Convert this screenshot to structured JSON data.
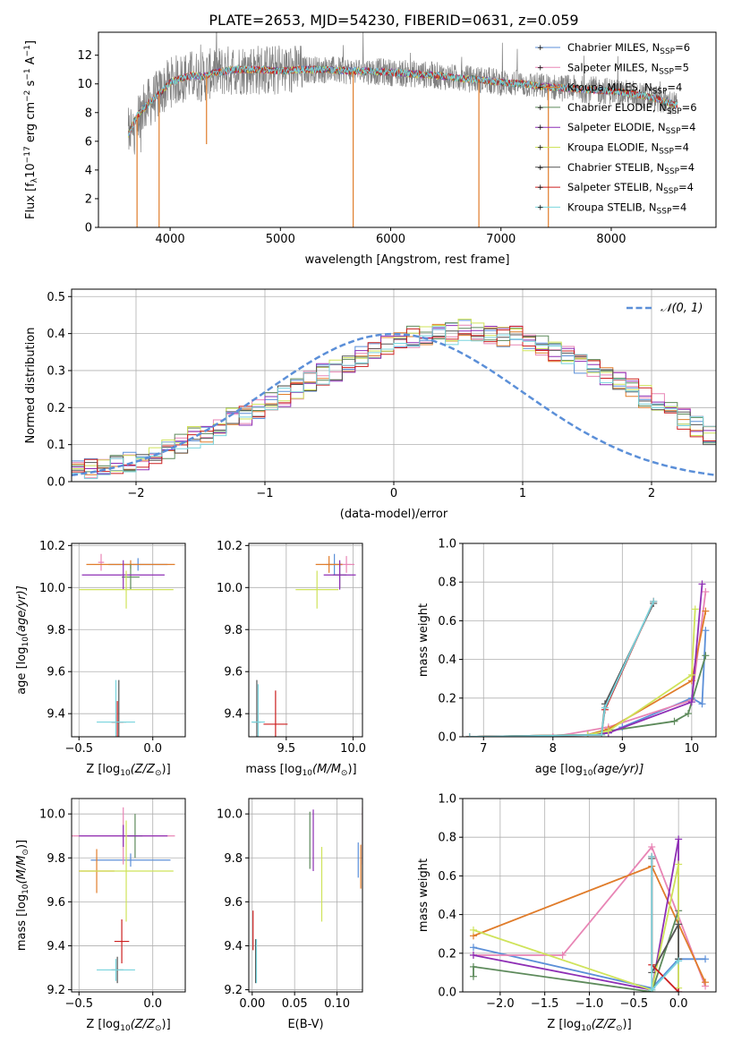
{
  "figure_title": "PLATE=2653, MJD=54230, FIBERID=0631, z=0.059",
  "colors": {
    "Chabrier MILES": "#5b8fd8",
    "Salpeter MILES": "#e885b5",
    "Kroupa MILES": "#e07c2a",
    "Chabrier ELODIE": "#5d8a5b",
    "Salpeter ELODIE": "#8e2fb5",
    "Kroupa ELODIE": "#cfe35a",
    "Chabrier STELIB": "#555555",
    "Salpeter STELIB": "#cc1f1f",
    "Kroupa STELIB": "#78d4dd",
    "data": "#808080",
    "gaussian": "#5b8fd8"
  },
  "chart_data": [
    {
      "id": "spectrum",
      "type": "line",
      "title": "PLATE=2653, MJD=54230, FIBERID=0631, z=0.059",
      "xlabel": "wavelength [Angstrom, rest frame]",
      "ylabel_main": "Flux [f",
      "ylabel_lambda": "λ",
      "ylabel_rest": "10",
      "ylabel_exp1": "−17",
      "ylabel_tail": " erg cm",
      "ylabel_exp2": "−2",
      "ylabel_s": " s",
      "ylabel_exp3": "−1",
      "ylabel_end": " A",
      "ylabel_exp4": "−1",
      "ylabel_close": "]",
      "xlim": [
        3350,
        8950
      ],
      "ylim": [
        0,
        13.6
      ],
      "xticks": [
        4000,
        5000,
        6000,
        7000,
        8000
      ],
      "yticks": [
        0,
        2,
        4,
        6,
        8,
        10,
        12
      ],
      "legend_position": "top-right",
      "legend": [
        {
          "name": "Chabrier MILES",
          "n": "6"
        },
        {
          "name": "Salpeter MILES",
          "n": "5"
        },
        {
          "name": "Kroupa MILES",
          "n": "4"
        },
        {
          "name": "Chabrier ELODIE",
          "n": "6"
        },
        {
          "name": "Salpeter ELODIE",
          "n": "4"
        },
        {
          "name": "Kroupa ELODIE",
          "n": "4"
        },
        {
          "name": "Chabrier STELIB",
          "n": "4"
        },
        {
          "name": "Salpeter STELIB",
          "n": "4"
        },
        {
          "name": "Kroupa STELIB",
          "n": "4"
        }
      ],
      "legend_prefix": ", N",
      "legend_sub": "SSP",
      "legend_eq": "=",
      "continuum": {
        "x": [
          3620,
          3700,
          3800,
          3900,
          4000,
          4100,
          4200,
          4300,
          4400,
          4600,
          4800,
          5000,
          5200,
          5400,
          5600,
          5800,
          6000,
          6200,
          6400,
          6600,
          6800,
          7000,
          7200,
          7400,
          7600,
          7800,
          8000,
          8200,
          8400,
          8600
        ],
        "y": [
          6.5,
          7.8,
          8.6,
          9.3,
          10.1,
          10.4,
          10.6,
          10.5,
          10.8,
          11.0,
          11.0,
          10.9,
          11.0,
          11.0,
          10.9,
          10.9,
          10.8,
          10.7,
          10.6,
          10.4,
          10.3,
          10.1,
          10.0,
          9.8,
          9.7,
          9.6,
          9.5,
          9.3,
          9.0,
          8.5
        ]
      },
      "noise_amplitude": 1.2,
      "glitches": [
        {
          "x": 3700,
          "y": 0
        },
        {
          "x": 3900,
          "y": 0
        },
        {
          "x": 4330,
          "y": 5.8
        },
        {
          "x": 5660,
          "y": 0
        },
        {
          "x": 6800,
          "y": 0
        },
        {
          "x": 7430,
          "y": 0
        }
      ]
    },
    {
      "id": "residuals",
      "type": "area",
      "xlabel": "(data-model)/error",
      "ylabel": "Normed distribution",
      "xlim": [
        -2.5,
        2.5
      ],
      "ylim": [
        0,
        0.52
      ],
      "xticks": [
        -2,
        -1,
        0,
        1,
        2
      ],
      "xtick_labels": [
        "−2",
        "−1",
        "0",
        "1",
        "2"
      ],
      "yticks": [
        0.0,
        0.1,
        0.2,
        0.3,
        0.4,
        0.5
      ],
      "ytick_labels": [
        "0.0",
        "0.1",
        "0.2",
        "0.3",
        "0.4",
        "0.5"
      ],
      "grid": true,
      "legend_position": "top-right",
      "gaussian_label": "𝒩(0, 1)",
      "bin_width": 0.1,
      "bins_start": -2.5,
      "series_base": [
        0.03,
        0.035,
        0.04,
        0.05,
        0.055,
        0.06,
        0.07,
        0.09,
        0.1,
        0.12,
        0.13,
        0.15,
        0.17,
        0.18,
        0.2,
        0.22,
        0.23,
        0.25,
        0.27,
        0.29,
        0.3,
        0.32,
        0.34,
        0.35,
        0.37,
        0.38,
        0.39,
        0.39,
        0.4,
        0.4,
        0.41,
        0.4,
        0.4,
        0.39,
        0.39,
        0.38,
        0.37,
        0.35,
        0.34,
        0.32,
        0.3,
        0.28,
        0.27,
        0.25,
        0.23,
        0.21,
        0.19,
        0.17,
        0.15,
        0.13,
        0.12,
        0.1,
        0.09,
        0.08,
        0.065,
        0.055,
        0.05,
        0.04,
        0.035,
        0.03
      ]
    },
    {
      "id": "age_vs_Z",
      "type": "scatter",
      "xlabel_pre": "Z [log",
      "xlabel_sub": "10",
      "xlabel_post": "(Z/Z",
      "xlabel_sun": "⊙",
      "xlabel_end": ")]",
      "ylabel_pre": "age  [log",
      "ylabel_sub": "10",
      "ylabel_post": "(age/yr)]",
      "xlim": [
        -0.55,
        0.22
      ],
      "ylim": [
        9.29,
        10.21
      ],
      "xticks": [
        -0.5,
        0.0
      ],
      "xtick_labels": [
        "−0.5",
        "0.0"
      ],
      "yticks": [
        9.4,
        9.6,
        9.8,
        10.0,
        10.2
      ],
      "grid": true,
      "points": [
        {
          "series": "Chabrier MILES",
          "x": -0.1,
          "xerr": 0.2,
          "y": 10.11,
          "yerr": 0.03
        },
        {
          "series": "Salpeter MILES",
          "x": -0.35,
          "xerr": 0.02,
          "y": 10.12,
          "yerr": 0.04
        },
        {
          "series": "Kroupa MILES",
          "x": -0.15,
          "xerr": 0.3,
          "y": 10.11,
          "yerr": 0.02
        },
        {
          "series": "Chabrier ELODIE",
          "x": -0.15,
          "xerr": 0.06,
          "y": 10.05,
          "yerr": 0.06
        },
        {
          "series": "Salpeter ELODIE",
          "x": -0.2,
          "xerr": 0.28,
          "y": 10.06,
          "yerr": 0.07
        },
        {
          "series": "Kroupa ELODIE",
          "x": -0.18,
          "xerr": 0.32,
          "y": 9.99,
          "yerr": 0.09
        },
        {
          "series": "Chabrier STELIB",
          "x": -0.23,
          "xerr": 0.05,
          "y": 9.36,
          "yerr": 0.2
        },
        {
          "series": "Salpeter STELIB",
          "x": -0.24,
          "xerr": 0.04,
          "y": 9.36,
          "yerr": 0.1
        },
        {
          "series": "Kroupa STELIB",
          "x": -0.25,
          "xerr": 0.13,
          "y": 9.36,
          "yerr": 0.2
        }
      ]
    },
    {
      "id": "age_vs_mass",
      "type": "scatter",
      "xlabel_pre": "mass [log",
      "xlabel_sub": "10",
      "xlabel_post": "(M/M",
      "xlabel_sun": "⊙",
      "xlabel_end": ")]",
      "xlim": [
        9.22,
        10.07
      ],
      "ylim": [
        9.29,
        10.21
      ],
      "xticks": [
        9.5,
        10.0
      ],
      "xtick_labels": [
        "9.5",
        "10.0"
      ],
      "yticks": [
        9.4,
        9.6,
        9.8,
        10.0,
        10.2
      ],
      "grid": true,
      "points": [
        {
          "series": "Chabrier MILES",
          "x": 9.86,
          "xerr": 0.06,
          "y": 10.11,
          "yerr": 0.05
        },
        {
          "series": "Salpeter MILES",
          "x": 9.95,
          "xerr": 0.06,
          "y": 10.11,
          "yerr": 0.04
        },
        {
          "series": "Kroupa MILES",
          "x": 9.82,
          "xerr": 0.1,
          "y": 10.11,
          "yerr": 0.04
        },
        {
          "series": "Chabrier ELODIE",
          "x": 9.9,
          "xerr": 0.05,
          "y": 10.06,
          "yerr": 0.06
        },
        {
          "series": "Salpeter ELODIE",
          "x": 9.9,
          "xerr": 0.12,
          "y": 10.06,
          "yerr": 0.07
        },
        {
          "series": "Kroupa ELODIE",
          "x": 9.73,
          "xerr": 0.16,
          "y": 9.99,
          "yerr": 0.09
        },
        {
          "series": "Chabrier STELIB",
          "x": 9.28,
          "xerr": 0.03,
          "y": 9.36,
          "yerr": 0.2
        },
        {
          "series": "Salpeter STELIB",
          "x": 9.42,
          "xerr": 0.09,
          "y": 9.35,
          "yerr": 0.16
        },
        {
          "series": "Kroupa STELIB",
          "x": 9.29,
          "xerr": 0.05,
          "y": 9.36,
          "yerr": 0.18
        }
      ]
    },
    {
      "id": "mass_weight_vs_age",
      "type": "line",
      "xlabel_pre": "age  [log",
      "xlabel_sub": "10",
      "xlabel_post": "(age/yr)]",
      "ylabel": "mass weight",
      "xlim": [
        6.7,
        10.35
      ],
      "ylim": [
        0,
        1
      ],
      "xticks": [
        7,
        8,
        9,
        10
      ],
      "yticks": [
        0.0,
        0.2,
        0.4,
        0.6,
        0.8,
        1.0
      ],
      "ytick_labels": [
        "0.0",
        "0.2",
        "0.4",
        "0.6",
        "0.8",
        "1.0"
      ],
      "grid": true,
      "series": [
        {
          "name": "Chabrier MILES",
          "x": [
            6.8,
            8.5,
            8.8,
            9.0,
            10.0,
            10.15,
            10.2
          ],
          "y": [
            0.0,
            0.01,
            0.02,
            0.05,
            0.2,
            0.17,
            0.55
          ]
        },
        {
          "name": "Salpeter MILES",
          "x": [
            6.8,
            8.0,
            8.8,
            10.0,
            10.2
          ],
          "y": [
            0.0,
            0.0,
            0.05,
            0.19,
            0.75
          ]
        },
        {
          "name": "Kroupa MILES",
          "x": [
            6.8,
            8.5,
            8.8,
            10.0,
            10.2
          ],
          "y": [
            0.0,
            0.01,
            0.04,
            0.29,
            0.65
          ]
        },
        {
          "name": "Chabrier ELODIE",
          "x": [
            6.8,
            8.5,
            8.8,
            9.75,
            9.95,
            10.2
          ],
          "y": [
            0.0,
            0.01,
            0.03,
            0.08,
            0.12,
            0.42
          ]
        },
        {
          "name": "Salpeter ELODIE",
          "x": [
            6.8,
            8.5,
            8.8,
            10.0,
            10.15
          ],
          "y": [
            0.0,
            0.01,
            0.02,
            0.18,
            0.79
          ]
        },
        {
          "name": "Kroupa ELODIE",
          "x": [
            6.8,
            8.5,
            8.8,
            10.0,
            10.05
          ],
          "y": [
            0.0,
            0.01,
            0.03,
            0.32,
            0.66
          ]
        },
        {
          "name": "Chabrier STELIB",
          "x": [
            6.8,
            8.7,
            8.75,
            9.45
          ],
          "y": [
            0.0,
            0.01,
            0.17,
            0.69
          ]
        },
        {
          "name": "Salpeter STELIB",
          "x": [
            6.8,
            8.7,
            8.75,
            9.45
          ],
          "y": [
            0.0,
            0.01,
            0.14,
            0.7
          ]
        },
        {
          "name": "Kroupa STELIB",
          "x": [
            6.8,
            8.7,
            8.75,
            9.45
          ],
          "y": [
            0.0,
            0.01,
            0.15,
            0.7
          ]
        }
      ]
    },
    {
      "id": "mass_vs_Z",
      "type": "scatter",
      "xlabel_pre": "Z [log",
      "xlabel_sub": "10",
      "xlabel_post": "(Z/Z",
      "xlabel_sun": "⊙",
      "xlabel_end": ")]",
      "ylabel_pre": "mass [log",
      "ylabel_sub": "10",
      "ylabel_post": "(M/M",
      "ylabel_sun": "⊙",
      "ylabel_end": ")]",
      "xlim": [
        -0.55,
        0.22
      ],
      "ylim": [
        9.19,
        10.07
      ],
      "xticks": [
        -0.5,
        0.0
      ],
      "xtick_labels": [
        "−0.5",
        "0.0"
      ],
      "yticks": [
        9.2,
        9.4,
        9.6,
        9.8,
        10.0
      ],
      "grid": true,
      "points": [
        {
          "series": "Chabrier MILES",
          "x": -0.15,
          "xerr": 0.27,
          "y": 9.79,
          "yerr": 0.03
        },
        {
          "series": "Salpeter MILES",
          "x": -0.2,
          "xerr": 0.35,
          "y": 9.9,
          "yerr": 0.13
        },
        {
          "series": "Kroupa MILES",
          "x": -0.38,
          "xerr": 0.12,
          "y": 9.74,
          "yerr": 0.1
        },
        {
          "series": "Chabrier ELODIE",
          "x": -0.12,
          "xerr": 0.05,
          "y": 9.9,
          "yerr": 0.1
        },
        {
          "series": "Salpeter ELODIE",
          "x": -0.2,
          "xerr": 0.3,
          "y": 9.9,
          "yerr": 0.05
        },
        {
          "series": "Kroupa ELODIE",
          "x": -0.18,
          "xerr": 0.32,
          "y": 9.74,
          "yerr": 0.23
        },
        {
          "series": "Chabrier STELIB",
          "x": -0.24,
          "xerr": 0.04,
          "y": 9.29,
          "yerr": 0.06
        },
        {
          "series": "Salpeter STELIB",
          "x": -0.21,
          "xerr": 0.05,
          "y": 9.42,
          "yerr": 0.1
        },
        {
          "series": "Kroupa STELIB",
          "x": -0.25,
          "xerr": 0.13,
          "y": 9.29,
          "yerr": 0.05
        }
      ]
    },
    {
      "id": "mass_vs_EBV",
      "type": "scatter",
      "xlabel": "E(B-V)",
      "xlim": [
        -0.004,
        0.13
      ],
      "ylim": [
        9.19,
        10.07
      ],
      "xticks": [
        0.0,
        0.05,
        0.1
      ],
      "xtick_labels": [
        "0.00",
        "0.05",
        "0.10"
      ],
      "yticks": [
        9.2,
        9.4,
        9.6,
        9.8,
        10.0
      ],
      "grid": true,
      "points": [
        {
          "series": "Chabrier MILES",
          "x": 0.125,
          "xerr": 0.0,
          "y": 9.79,
          "yerr": 0.08
        },
        {
          "series": "Salpeter MILES",
          "x": 0.13,
          "xerr": 0.0,
          "y": 9.9,
          "yerr": 0.13
        },
        {
          "series": "Kroupa MILES",
          "x": 0.128,
          "xerr": 0.0,
          "y": 9.76,
          "yerr": 0.1
        },
        {
          "series": "Chabrier ELODIE",
          "x": 0.068,
          "xerr": 0.0,
          "y": 9.88,
          "yerr": 0.13
        },
        {
          "series": "Salpeter ELODIE",
          "x": 0.072,
          "xerr": 0.0,
          "y": 9.88,
          "yerr": 0.14
        },
        {
          "series": "Kroupa ELODIE",
          "x": 0.082,
          "xerr": 0.0,
          "y": 9.68,
          "yerr": 0.17
        },
        {
          "series": "Chabrier STELIB",
          "x": 0.004,
          "xerr": 0.0,
          "y": 9.33,
          "yerr": 0.1
        },
        {
          "series": "Salpeter STELIB",
          "x": 0.001,
          "xerr": 0.0,
          "y": 9.47,
          "yerr": 0.09
        },
        {
          "series": "Kroupa STELIB",
          "x": 0.005,
          "xerr": 0.0,
          "y": 9.33,
          "yerr": 0.1
        }
      ]
    },
    {
      "id": "mass_weight_vs_Z",
      "type": "line",
      "xlabel_pre": "Z [log",
      "xlabel_sub": "10",
      "xlabel_post": "(Z/Z",
      "xlabel_sun": "⊙",
      "xlabel_end": ")]",
      "ylabel": "mass weight",
      "xlim": [
        -2.42,
        0.42
      ],
      "ylim": [
        0,
        1
      ],
      "xticks": [
        -2.0,
        -1.5,
        -1.0,
        -0.5,
        0.0
      ],
      "xtick_labels": [
        "−2.0",
        "−1.5",
        "−1.0",
        "−0.5",
        "0.0"
      ],
      "yticks": [
        0.0,
        0.2,
        0.4,
        0.6,
        0.8,
        1.0
      ],
      "ytick_labels": [
        "0.0",
        "0.2",
        "0.4",
        "0.6",
        "0.8",
        "1.0"
      ],
      "grid": true,
      "series": [
        {
          "name": "Chabrier MILES",
          "x": [
            -2.3,
            -0.3,
            0.0,
            0.3
          ],
          "y": [
            0.23,
            0.02,
            0.17,
            0.17
          ]
        },
        {
          "name": "Salpeter MILES",
          "x": [
            -2.3,
            -1.3,
            -0.3,
            0.3
          ],
          "y": [
            0.19,
            0.19,
            0.75,
            0.03
          ]
        },
        {
          "name": "Kroupa MILES",
          "x": [
            -2.3,
            -0.3,
            0.3
          ],
          "y": [
            0.29,
            0.65,
            0.05
          ]
        },
        {
          "name": "Chabrier ELODIE",
          "x": [
            -2.3,
            -2.3,
            -0.3,
            0.0,
            0.0
          ],
          "y": [
            0.08,
            0.13,
            0.0,
            0.42,
            0.17
          ]
        },
        {
          "name": "Salpeter ELODIE",
          "x": [
            -2.3,
            -0.3,
            0.0,
            0.0
          ],
          "y": [
            0.19,
            0.01,
            0.79,
            0.0
          ]
        },
        {
          "name": "Kroupa ELODIE",
          "x": [
            -2.3,
            -0.3,
            0.0,
            0.0
          ],
          "y": [
            0.32,
            0.01,
            0.66,
            0.02
          ]
        },
        {
          "name": "Chabrier STELIB",
          "x": [
            -0.3,
            -0.3,
            0.0,
            0.0
          ],
          "y": [
            0.69,
            0.1,
            0.35,
            0.17
          ]
        },
        {
          "name": "Salpeter STELIB",
          "x": [
            -0.3,
            -0.3,
            0.0
          ],
          "y": [
            0.7,
            0.14,
            0.0
          ]
        },
        {
          "name": "Kroupa STELIB",
          "x": [
            -0.3,
            -0.3,
            0.0
          ],
          "y": [
            0.7,
            0.01,
            0.16
          ]
        }
      ]
    }
  ]
}
